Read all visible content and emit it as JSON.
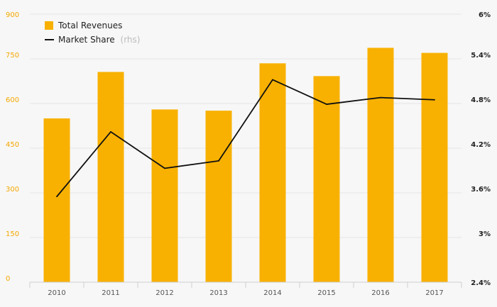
{
  "chart_data": {
    "type": "bar",
    "categories": [
      "2010",
      "2011",
      "2012",
      "2013",
      "2014",
      "2015",
      "2016",
      "2017"
    ],
    "series": [
      {
        "name": "Total Revenues",
        "type": "bar",
        "axis": "left",
        "color": "#f8b100",
        "values": [
          550,
          706,
          580,
          576,
          735,
          692,
          787,
          770
        ]
      },
      {
        "name": "Market Share",
        "name_suffix": "(rhs)",
        "type": "line",
        "axis": "right",
        "color": "#111111",
        "values": [
          3.55,
          4.42,
          3.93,
          4.03,
          5.12,
          4.79,
          4.88,
          4.85
        ]
      }
    ],
    "y_left": {
      "ylim": [
        0,
        900
      ],
      "ticks": [
        0,
        150,
        300,
        450,
        600,
        750,
        900
      ],
      "tick_labels": [
        "0",
        "150",
        "300",
        "450",
        "600",
        "750",
        "900"
      ],
      "color": "#f5a800"
    },
    "y_right": {
      "ylim": [
        2.4,
        6.0
      ],
      "ticks": [
        2.4,
        3.0,
        3.6,
        4.2,
        4.8,
        5.4,
        6.0
      ],
      "tick_labels": [
        "2.4%",
        "3%",
        "3.6%",
        "4.2%",
        "4.8%",
        "5.4%",
        "6%"
      ]
    },
    "grid": true,
    "legend_position": "top-left",
    "title": "",
    "xlabel": "",
    "ylabel": ""
  }
}
